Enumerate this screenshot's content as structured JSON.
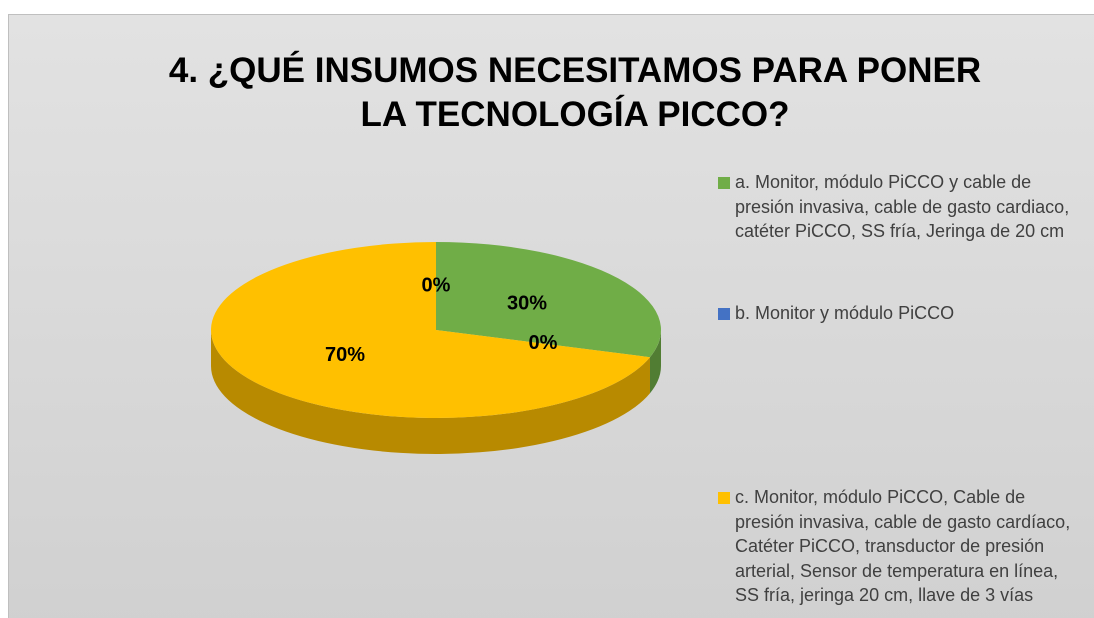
{
  "chart_data": {
    "type": "pie",
    "title": "4. ¿QUÉ INSUMOS NECESITAMOS PARA PONER LA TECNOLOGÍA PICCO?",
    "categories": [
      "a. Monitor, módulo PiCCO y cable de presión invasiva, cable de gasto cardiaco, catéter PiCCO, SS fría, Jeringa de 20 cm",
      "b. Monitor y módulo PiCCO",
      "c. Monitor, módulo PiCCO, Cable de presión invasiva, cable de gasto cardíaco, Catéter PiCCO, transductor de presión arterial, Sensor de temperatura en línea, SS fría, jeringa 20 cm, llave de 3 vías",
      null
    ],
    "values": [
      30,
      0,
      70,
      0
    ],
    "value_labels": [
      "30%",
      "0%",
      "70%",
      "0%"
    ],
    "colors": [
      "#70ad47",
      "#4472c4",
      "#ffc000",
      "#a5a5a5"
    ]
  }
}
